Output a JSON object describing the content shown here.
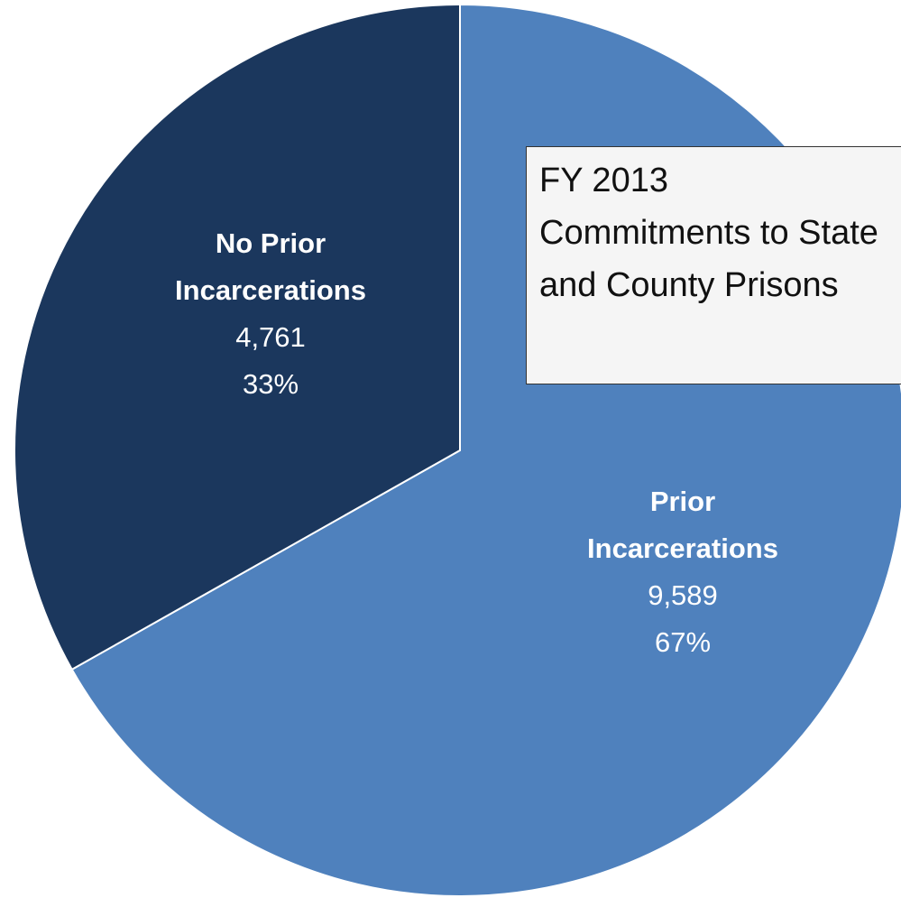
{
  "chart_data": {
    "type": "pie",
    "title": "FY 2013 Commitments to State and County Prisons",
    "categories": [
      "Prior Incarcerations",
      "No Prior Incarcerations"
    ],
    "values": [
      9589,
      4761
    ],
    "value_labels": [
      "9,589",
      "4,761"
    ],
    "percentages": [
      67,
      33
    ],
    "percentage_labels": [
      "67%",
      "33%"
    ],
    "colors": [
      "#4f81bd",
      "#1b375d"
    ]
  }
}
